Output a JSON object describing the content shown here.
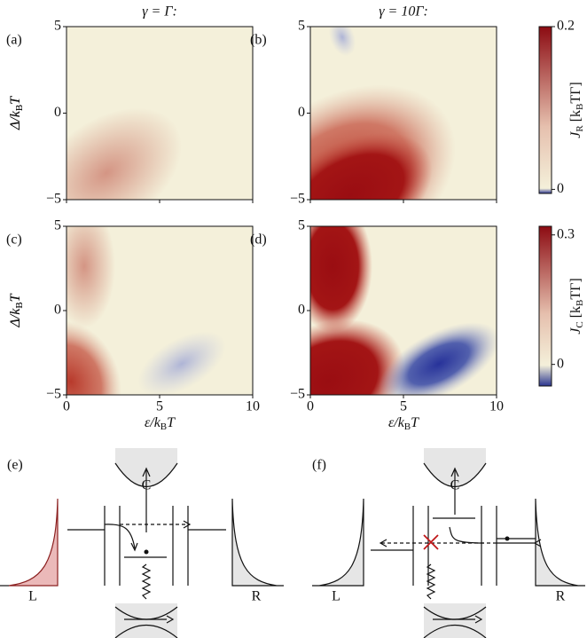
{
  "panels": [
    {
      "label": "(a)",
      "title": "γ = Γ:"
    },
    {
      "label": "(b)",
      "title": "γ = 10Γ:"
    },
    {
      "label": "(c)"
    },
    {
      "label": "(d)"
    }
  ],
  "axes": {
    "xlabel": {
      "main": "ε/k",
      "sub": "B",
      "tail": "T"
    },
    "ylabel": {
      "main": "Δ/k",
      "sub": "B",
      "tail": "T"
    },
    "xlim": [
      0,
      10
    ],
    "xticks": [
      0,
      5,
      10
    ],
    "ylim": [
      -5,
      5
    ],
    "yticks": [
      {
        "value": -5,
        "label": "−5"
      },
      0,
      5
    ]
  },
  "colorbars": [
    {
      "main": "J",
      "sub": "R",
      "tail": " [k",
      "sub2": "B",
      "tail2": "TΓ]",
      "clim": [
        -0.005,
        0.2
      ],
      "ticks": [
        0,
        0.2
      ]
    },
    {
      "main": "J",
      "sub": "C",
      "tail": " [k",
      "sub2": "B",
      "tail2": "TΓ]",
      "clim": [
        -0.05,
        0.32
      ],
      "ticks": [
        0,
        0.3
      ]
    }
  ],
  "diagrams": [
    {
      "label": "(e)",
      "left": "L",
      "center": "C",
      "right": "R"
    },
    {
      "label": "(f)",
      "left": "L",
      "center": "C",
      "right": "R"
    }
  ]
}
